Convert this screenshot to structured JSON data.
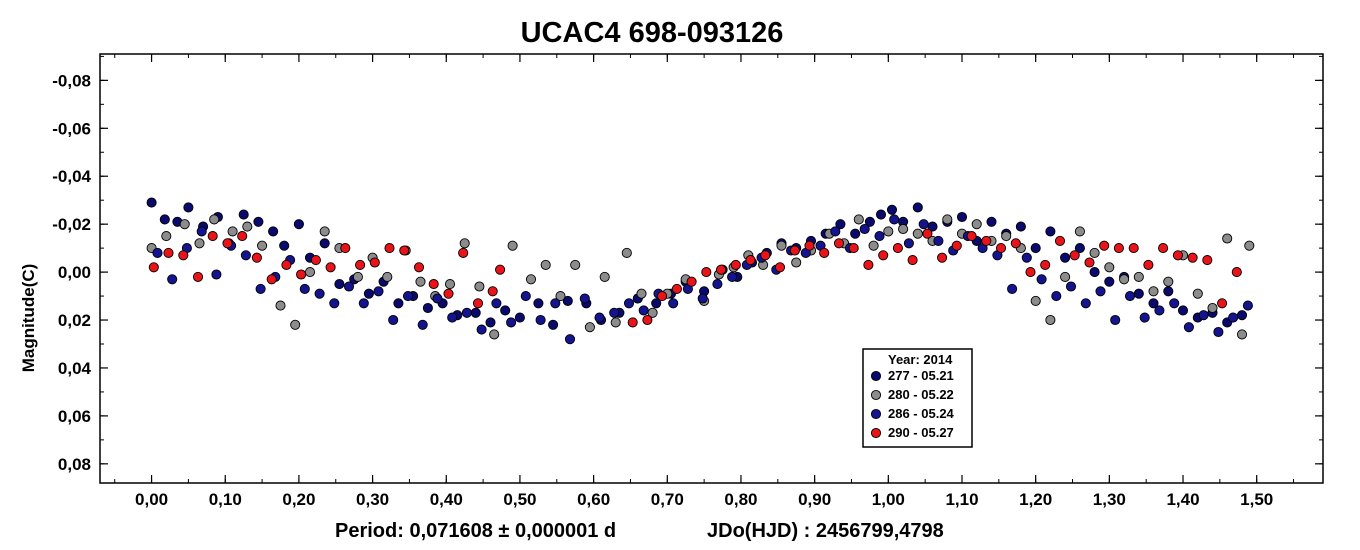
{
  "chart_data": {
    "type": "scatter",
    "title": "UCAC4 698-093126",
    "xlabel": "",
    "ylabel": "Magnitude(C)",
    "xlim": [
      -0.07,
      1.59
    ],
    "ylim": [
      0.088,
      -0.091
    ],
    "x_ticks": [
      "0,00",
      "0,10",
      "0,20",
      "0,30",
      "0,40",
      "0,50",
      "0,60",
      "0,70",
      "0,80",
      "0,90",
      "1,00",
      "1,10",
      "1,20",
      "1,30",
      "1,40",
      "1,50"
    ],
    "x_tick_values": [
      0,
      0.1,
      0.2,
      0.3,
      0.4,
      0.5,
      0.6,
      0.7,
      0.8,
      0.9,
      1.0,
      1.1,
      1.2,
      1.3,
      1.4,
      1.5
    ],
    "y_ticks": [
      "-0,08",
      "-0,06",
      "-0,04",
      "-0,02",
      "0,00",
      "0,02",
      "0,04",
      "0,06",
      "0,08"
    ],
    "y_tick_values": [
      -0.08,
      -0.06,
      -0.04,
      -0.02,
      0,
      0.02,
      0.04,
      0.06,
      0.08
    ],
    "grid": false,
    "legend": {
      "position": "lower-center",
      "header": "Year: 2014",
      "entries": [
        "277 - 05.21",
        "280 - 05.22",
        "286 - 05.24",
        "290 - 05.27"
      ]
    },
    "footer": {
      "period": "Period: 0,071608 ± 0,000001 d",
      "epoch": "JDo(HJD) : 2456799,4798"
    },
    "series": [
      {
        "name": "277 - 05.21",
        "color": "#0a0a6e",
        "points": [
          [
            0.0,
            -0.029
          ],
          [
            0.018,
            -0.022
          ],
          [
            0.035,
            -0.021
          ],
          [
            0.05,
            -0.027
          ],
          [
            0.07,
            -0.019
          ],
          [
            0.09,
            -0.023
          ],
          [
            0.105,
            -0.012
          ],
          [
            0.125,
            -0.024
          ],
          [
            0.145,
            -0.021
          ],
          [
            0.165,
            -0.017
          ],
          [
            0.18,
            -0.011
          ],
          [
            0.2,
            -0.02
          ],
          [
            0.215,
            -0.006
          ],
          [
            0.235,
            -0.012
          ],
          [
            0.255,
            0.005
          ],
          [
            0.275,
            0.003
          ],
          [
            0.295,
            0.009
          ],
          [
            0.315,
            0.004
          ],
          [
            0.335,
            0.013
          ],
          [
            0.355,
            0.01
          ],
          [
            0.375,
            0.015
          ],
          [
            0.395,
            0.013
          ],
          [
            0.415,
            0.018
          ],
          [
            0.44,
            0.017
          ],
          [
            0.46,
            0.021
          ],
          [
            0.48,
            0.016
          ],
          [
            0.5,
            0.019
          ],
          [
            0.525,
            0.013
          ],
          [
            0.545,
            0.022
          ],
          [
            0.565,
            0.012
          ],
          [
            0.59,
            0.013
          ],
          [
            0.61,
            0.02
          ],
          [
            0.635,
            0.017
          ],
          [
            0.66,
            0.011
          ],
          [
            0.685,
            0.013
          ],
          [
            0.705,
            0.009
          ],
          [
            0.725,
            0.004
          ],
          [
            0.75,
            0.008
          ],
          [
            0.775,
            -0.001
          ],
          [
            0.795,
            0.002
          ],
          [
            0.815,
            -0.004
          ],
          [
            0.835,
            -0.008
          ],
          [
            0.855,
            -0.012
          ],
          [
            0.875,
            -0.01
          ],
          [
            0.895,
            -0.013
          ],
          [
            0.915,
            -0.016
          ],
          [
            0.935,
            -0.02
          ],
          [
            0.955,
            -0.016
          ],
          [
            0.975,
            -0.021
          ],
          [
            0.99,
            -0.024
          ],
          [
            1.005,
            -0.026
          ],
          [
            1.02,
            -0.021
          ],
          [
            1.04,
            -0.027
          ],
          [
            1.06,
            -0.019
          ],
          [
            1.08,
            -0.021
          ],
          [
            1.1,
            -0.023
          ],
          [
            1.12,
            -0.013
          ],
          [
            1.14,
            -0.021
          ],
          [
            1.16,
            -0.016
          ],
          [
            1.18,
            -0.019
          ],
          [
            1.2,
            -0.01
          ],
          [
            1.22,
            -0.017
          ],
          [
            1.24,
            -0.006
          ],
          [
            1.26,
            -0.01
          ],
          [
            1.28,
            0.0
          ],
          [
            1.3,
            0.004
          ],
          [
            1.32,
            0.002
          ],
          [
            1.34,
            0.009
          ],
          [
            1.36,
            0.013
          ],
          [
            1.38,
            0.008
          ],
          [
            1.4,
            0.016
          ],
          [
            1.42,
            0.019
          ],
          [
            1.44,
            0.017
          ],
          [
            1.46,
            0.021
          ],
          [
            1.48,
            0.018
          ]
        ]
      },
      {
        "name": "280 - 05.22",
        "color": "#8c8c8c",
        "points": [
          [
            0.0,
            -0.01
          ],
          [
            0.02,
            -0.015
          ],
          [
            0.045,
            -0.02
          ],
          [
            0.065,
            -0.012
          ],
          [
            0.085,
            -0.022
          ],
          [
            0.11,
            -0.017
          ],
          [
            0.13,
            -0.019
          ],
          [
            0.15,
            -0.011
          ],
          [
            0.175,
            0.014
          ],
          [
            0.195,
            0.022
          ],
          [
            0.215,
            0.0
          ],
          [
            0.235,
            -0.017
          ],
          [
            0.255,
            -0.01
          ],
          [
            0.28,
            0.002
          ],
          [
            0.3,
            -0.006
          ],
          [
            0.32,
            0.002
          ],
          [
            0.345,
            -0.009
          ],
          [
            0.365,
            0.004
          ],
          [
            0.385,
            0.01
          ],
          [
            0.405,
            0.005
          ],
          [
            0.425,
            -0.012
          ],
          [
            0.445,
            0.006
          ],
          [
            0.465,
            0.026
          ],
          [
            0.49,
            -0.011
          ],
          [
            0.515,
            0.003
          ],
          [
            0.535,
            -0.003
          ],
          [
            0.555,
            0.01
          ],
          [
            0.575,
            -0.003
          ],
          [
            0.595,
            0.023
          ],
          [
            0.615,
            0.002
          ],
          [
            0.63,
            0.021
          ],
          [
            0.645,
            -0.008
          ],
          [
            0.665,
            0.009
          ],
          [
            0.68,
            0.017
          ],
          [
            0.7,
            0.009
          ],
          [
            0.725,
            0.003
          ],
          [
            0.75,
            0.012
          ],
          [
            0.77,
            0.001
          ],
          [
            0.79,
            -0.002
          ],
          [
            0.81,
            -0.007
          ],
          [
            0.83,
            -0.003
          ],
          [
            0.855,
            -0.011
          ],
          [
            0.875,
            -0.004
          ],
          [
            0.895,
            -0.009
          ],
          [
            0.92,
            -0.016
          ],
          [
            0.94,
            -0.012
          ],
          [
            0.96,
            -0.022
          ],
          [
            0.98,
            -0.011
          ],
          [
            1.0,
            -0.017
          ],
          [
            1.02,
            -0.018
          ],
          [
            1.04,
            -0.016
          ],
          [
            1.06,
            -0.013
          ],
          [
            1.08,
            -0.022
          ],
          [
            1.1,
            -0.016
          ],
          [
            1.12,
            -0.02
          ],
          [
            1.14,
            -0.013
          ],
          [
            1.16,
            -0.015
          ],
          [
            1.18,
            -0.01
          ],
          [
            1.2,
            0.012
          ],
          [
            1.22,
            0.02
          ],
          [
            1.24,
            0.002
          ],
          [
            1.26,
            -0.017
          ],
          [
            1.28,
            -0.008
          ],
          [
            1.3,
            -0.002
          ],
          [
            1.32,
            0.003
          ],
          [
            1.34,
            0.002
          ],
          [
            1.36,
            0.008
          ],
          [
            1.38,
            0.004
          ],
          [
            1.4,
            -0.007
          ],
          [
            1.42,
            0.009
          ],
          [
            1.44,
            0.015
          ],
          [
            1.46,
            -0.014
          ],
          [
            1.48,
            0.026
          ],
          [
            1.49,
            -0.011
          ]
        ]
      },
      {
        "name": "286 - 05.24",
        "color": "#141490",
        "points": [
          [
            0.008,
            -0.008
          ],
          [
            0.028,
            0.003
          ],
          [
            0.048,
            -0.01
          ],
          [
            0.068,
            -0.017
          ],
          [
            0.088,
            0.001
          ],
          [
            0.108,
            -0.011
          ],
          [
            0.128,
            -0.007
          ],
          [
            0.148,
            0.007
          ],
          [
            0.168,
            0.002
          ],
          [
            0.188,
            -0.005
          ],
          [
            0.208,
            0.007
          ],
          [
            0.228,
            0.009
          ],
          [
            0.248,
            0.013
          ],
          [
            0.268,
            0.006
          ],
          [
            0.288,
            0.013
          ],
          [
            0.308,
            0.008
          ],
          [
            0.328,
            0.02
          ],
          [
            0.348,
            0.01
          ],
          [
            0.368,
            0.022
          ],
          [
            0.388,
            0.011
          ],
          [
            0.408,
            0.019
          ],
          [
            0.428,
            0.017
          ],
          [
            0.448,
            0.024
          ],
          [
            0.468,
            0.013
          ],
          [
            0.488,
            0.021
          ],
          [
            0.508,
            0.01
          ],
          [
            0.528,
            0.02
          ],
          [
            0.548,
            0.013
          ],
          [
            0.568,
            0.028
          ],
          [
            0.588,
            0.011
          ],
          [
            0.608,
            0.019
          ],
          [
            0.628,
            0.017
          ],
          [
            0.648,
            0.013
          ],
          [
            0.668,
            0.016
          ],
          [
            0.688,
            0.009
          ],
          [
            0.708,
            0.013
          ],
          [
            0.728,
            0.007
          ],
          [
            0.748,
            0.011
          ],
          [
            0.768,
            0.005
          ],
          [
            0.788,
            0.002
          ],
          [
            0.808,
            -0.003
          ],
          [
            0.828,
            -0.006
          ],
          [
            0.848,
            -0.001
          ],
          [
            0.868,
            -0.009
          ],
          [
            0.888,
            -0.008
          ],
          [
            0.908,
            -0.011
          ],
          [
            0.928,
            -0.017
          ],
          [
            0.948,
            -0.01
          ],
          [
            0.968,
            -0.018
          ],
          [
            0.988,
            -0.015
          ],
          [
            1.008,
            -0.022
          ],
          [
            1.028,
            -0.012
          ],
          [
            1.048,
            -0.02
          ],
          [
            1.068,
            -0.013
          ],
          [
            1.088,
            -0.009
          ],
          [
            1.108,
            -0.015
          ],
          [
            1.128,
            -0.01
          ],
          [
            1.148,
            -0.007
          ],
          [
            1.168,
            0.007
          ],
          [
            1.188,
            -0.006
          ],
          [
            1.208,
            0.003
          ],
          [
            1.228,
            0.01
          ],
          [
            1.248,
            0.006
          ],
          [
            1.268,
            0.013
          ],
          [
            1.288,
            0.008
          ],
          [
            1.308,
            0.02
          ],
          [
            1.328,
            0.01
          ],
          [
            1.348,
            0.019
          ],
          [
            1.368,
            0.016
          ],
          [
            1.388,
            0.013
          ],
          [
            1.408,
            0.023
          ],
          [
            1.428,
            0.018
          ],
          [
            1.448,
            0.025
          ],
          [
            1.468,
            0.019
          ],
          [
            1.488,
            0.014
          ]
        ]
      },
      {
        "name": "290 - 05.27",
        "color": "#e8141a",
        "points": [
          [
            0.003,
            -0.002
          ],
          [
            0.023,
            -0.008
          ],
          [
            0.043,
            -0.007
          ],
          [
            0.063,
            0.002
          ],
          [
            0.083,
            -0.015
          ],
          [
            0.103,
            -0.012
          ],
          [
            0.123,
            -0.015
          ],
          [
            0.143,
            -0.006
          ],
          [
            0.163,
            0.003
          ],
          [
            0.183,
            -0.003
          ],
          [
            0.203,
            0.001
          ],
          [
            0.223,
            -0.005
          ],
          [
            0.243,
            -0.002
          ],
          [
            0.263,
            -0.01
          ],
          [
            0.283,
            -0.003
          ],
          [
            0.303,
            -0.004
          ],
          [
            0.323,
            -0.01
          ],
          [
            0.343,
            -0.009
          ],
          [
            0.363,
            -0.002
          ],
          [
            0.383,
            0.005
          ],
          [
            0.403,
            0.009
          ],
          [
            0.423,
            -0.008
          ],
          [
            0.443,
            0.013
          ],
          [
            0.463,
            0.008
          ],
          [
            0.473,
            -0.001
          ],
          [
            0.653,
            0.021
          ],
          [
            0.673,
            0.02
          ],
          [
            0.693,
            0.01
          ],
          [
            0.713,
            0.007
          ],
          [
            0.733,
            0.004
          ],
          [
            0.753,
            0.0
          ],
          [
            0.773,
            -0.001
          ],
          [
            0.793,
            -0.003
          ],
          [
            0.813,
            -0.005
          ],
          [
            0.833,
            -0.007
          ],
          [
            0.853,
            -0.002
          ],
          [
            0.873,
            -0.009
          ],
          [
            0.893,
            -0.011
          ],
          [
            0.913,
            -0.008
          ],
          [
            0.933,
            -0.012
          ],
          [
            0.953,
            -0.01
          ],
          [
            0.973,
            -0.003
          ],
          [
            0.993,
            -0.007
          ],
          [
            1.013,
            -0.01
          ],
          [
            1.033,
            -0.005
          ],
          [
            1.053,
            -0.016
          ],
          [
            1.073,
            -0.006
          ],
          [
            1.093,
            -0.011
          ],
          [
            1.113,
            -0.015
          ],
          [
            1.133,
            -0.013
          ],
          [
            1.153,
            -0.01
          ],
          [
            1.173,
            -0.012
          ],
          [
            1.193,
            0.0
          ],
          [
            1.213,
            -0.003
          ],
          [
            1.233,
            -0.013
          ],
          [
            1.253,
            -0.007
          ],
          [
            1.273,
            -0.004
          ],
          [
            1.293,
            -0.011
          ],
          [
            1.313,
            -0.01
          ],
          [
            1.333,
            -0.01
          ],
          [
            1.353,
            -0.003
          ],
          [
            1.373,
            -0.01
          ],
          [
            1.393,
            -0.007
          ],
          [
            1.413,
            -0.006
          ],
          [
            1.433,
            -0.005
          ],
          [
            1.453,
            0.013
          ],
          [
            1.473,
            0.0
          ]
        ]
      }
    ]
  }
}
